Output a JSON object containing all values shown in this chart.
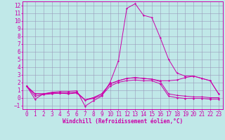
{
  "xlabel": "Windchill (Refroidissement éolien,°C)",
  "background_color": "#c0e8e8",
  "grid_color": "#9999bb",
  "line_color": "#cc00aa",
  "xmin": -0.5,
  "xmax": 23.5,
  "ymin": -1.5,
  "ymax": 12.5,
  "yticks": [
    -1,
    0,
    1,
    2,
    3,
    4,
    5,
    6,
    7,
    8,
    9,
    10,
    11,
    12
  ],
  "xticks": [
    0,
    1,
    2,
    3,
    4,
    5,
    6,
    7,
    8,
    9,
    10,
    11,
    12,
    13,
    14,
    15,
    16,
    17,
    18,
    19,
    20,
    21,
    22,
    23
  ],
  "lines": [
    [
      1.5,
      -0.2,
      0.5,
      0.7,
      0.8,
      0.8,
      0.9,
      -1.1,
      -0.4,
      0.2,
      2.0,
      4.8,
      11.6,
      12.2,
      10.7,
      10.4,
      7.8,
      5.0,
      3.2,
      2.8,
      2.8,
      2.5,
      2.2,
      0.5
    ],
    [
      1.5,
      0.5,
      0.5,
      0.6,
      0.6,
      0.6,
      0.7,
      -0.3,
      0.0,
      0.5,
      1.8,
      2.2,
      2.5,
      2.6,
      2.5,
      2.4,
      2.2,
      2.2,
      2.3,
      2.6,
      2.8,
      2.5,
      2.2,
      0.5
    ],
    [
      1.5,
      0.5,
      0.5,
      0.6,
      0.6,
      0.6,
      0.7,
      -0.3,
      0.0,
      0.5,
      1.8,
      2.2,
      2.5,
      2.6,
      2.5,
      2.4,
      2.1,
      0.5,
      0.3,
      0.2,
      0.1,
      0.1,
      0.0,
      0.0
    ],
    [
      1.5,
      0.2,
      0.4,
      0.5,
      0.6,
      0.5,
      0.6,
      -0.3,
      -0.1,
      0.3,
      1.5,
      2.0,
      2.2,
      2.3,
      2.2,
      2.2,
      1.8,
      0.2,
      0.0,
      -0.1,
      -0.1,
      -0.1,
      -0.2,
      -0.2
    ]
  ],
  "xlabel_fontsize": 5.5,
  "tick_fontsize": 5.5
}
